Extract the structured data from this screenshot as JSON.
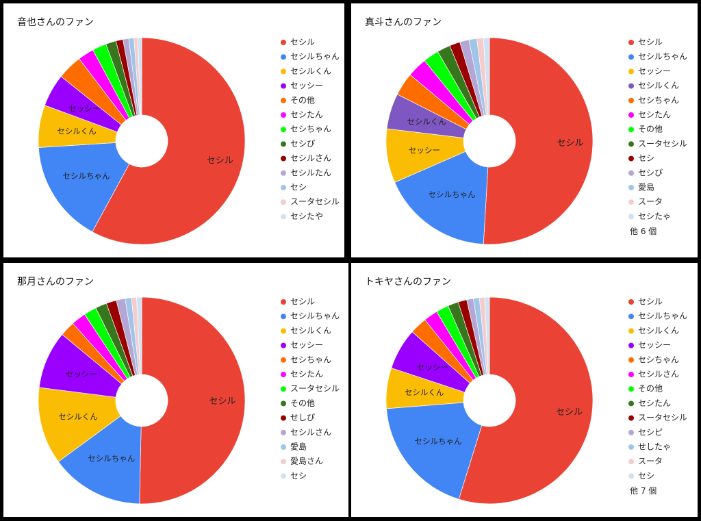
{
  "chart_data": [
    {
      "type": "pie",
      "title": "音也さんのファン",
      "categories": [
        "セシル",
        "セシルちゃん",
        "セシルくん",
        "セッシー",
        "その他",
        "セシたん",
        "セシちゃん",
        "セシぴ",
        "セシルさん",
        "セシルたん",
        "セシ",
        "スータセシル",
        "セシたや"
      ],
      "values": [
        57.7,
        16,
        6.6,
        5.1,
        3.9,
        2.5,
        2.2,
        1.6,
        1.1,
        0.9,
        0.8,
        0.6,
        0.6
      ],
      "colors": [
        "#ea4335",
        "#4285f4",
        "#fbbc04",
        "#9900ff",
        "#ff6d01",
        "#ff00ff",
        "#00ff00",
        "#38761d",
        "#990000",
        "#b4a7d6",
        "#9fc5e8",
        "#f4cccc",
        "#cfe2f3"
      ]
    },
    {
      "type": "pie",
      "title": "真斗さんのファン",
      "categories": [
        "セシル",
        "セシルちゃん",
        "セッシー",
        "セシルくん",
        "セシちゃん",
        "セシたん",
        "その他",
        "スータセシル",
        "セシ",
        "セシぴ",
        "愛島",
        "スータ",
        "セシたゃ"
      ],
      "values": [
        49.4,
        17,
        8.2,
        5.4,
        3.5,
        3,
        2.4,
        2,
        1.6,
        1.4,
        1.2,
        1,
        0.9
      ],
      "colors": [
        "#ea4335",
        "#4285f4",
        "#fbbc04",
        "#7e57c2",
        "#ff6d01",
        "#ff00ff",
        "#00ff00",
        "#38761d",
        "#990000",
        "#b4a7d6",
        "#9fc5e8",
        "#f4cccc",
        "#cfe2f3"
      ],
      "legend_more": "他 6 個"
    },
    {
      "type": "pie",
      "title": "那月さんのファン",
      "categories": [
        "セシル",
        "セシルちゃん",
        "セシルくん",
        "セッシー",
        "セシちゃん",
        "セシたん",
        "スータセシル",
        "その他",
        "せしぴ",
        "セシルさん",
        "愛島",
        "愛島さん",
        "セシ"
      ],
      "values": [
        50.8,
        14.7,
        12.2,
        9.1,
        2.4,
        2.3,
        2,
        1.8,
        1.6,
        1.4,
        1,
        0.8,
        0.8
      ],
      "colors": [
        "#ea4335",
        "#4285f4",
        "#fbbc04",
        "#9900ff",
        "#ff6d01",
        "#ff00ff",
        "#00ff00",
        "#38761d",
        "#990000",
        "#b4a7d6",
        "#9fc5e8",
        "#f4cccc",
        "#cfe2f3"
      ]
    },
    {
      "type": "pie",
      "title": "トキヤさんのファン",
      "categories": [
        "セシル",
        "セシルちゃん",
        "セシルくん",
        "セッシー",
        "セシちゃん",
        "セシルさん",
        "その他",
        "セシたん",
        "スータセシル",
        "セシピ",
        "せしたゃ",
        "スータ",
        "セシ"
      ],
      "values": [
        52.6,
        18.2,
        6.1,
        6.2,
        2.6,
        2.1,
        1.9,
        1.6,
        1.3,
        1,
        0.9,
        0.8,
        0.7
      ],
      "colors": [
        "#ea4335",
        "#4285f4",
        "#fbbc04",
        "#9900ff",
        "#ff6d01",
        "#ff00ff",
        "#00ff00",
        "#38761d",
        "#990000",
        "#b4a7d6",
        "#9fc5e8",
        "#f4cccc",
        "#cfe2f3"
      ],
      "legend_more": "他 7 個"
    }
  ]
}
